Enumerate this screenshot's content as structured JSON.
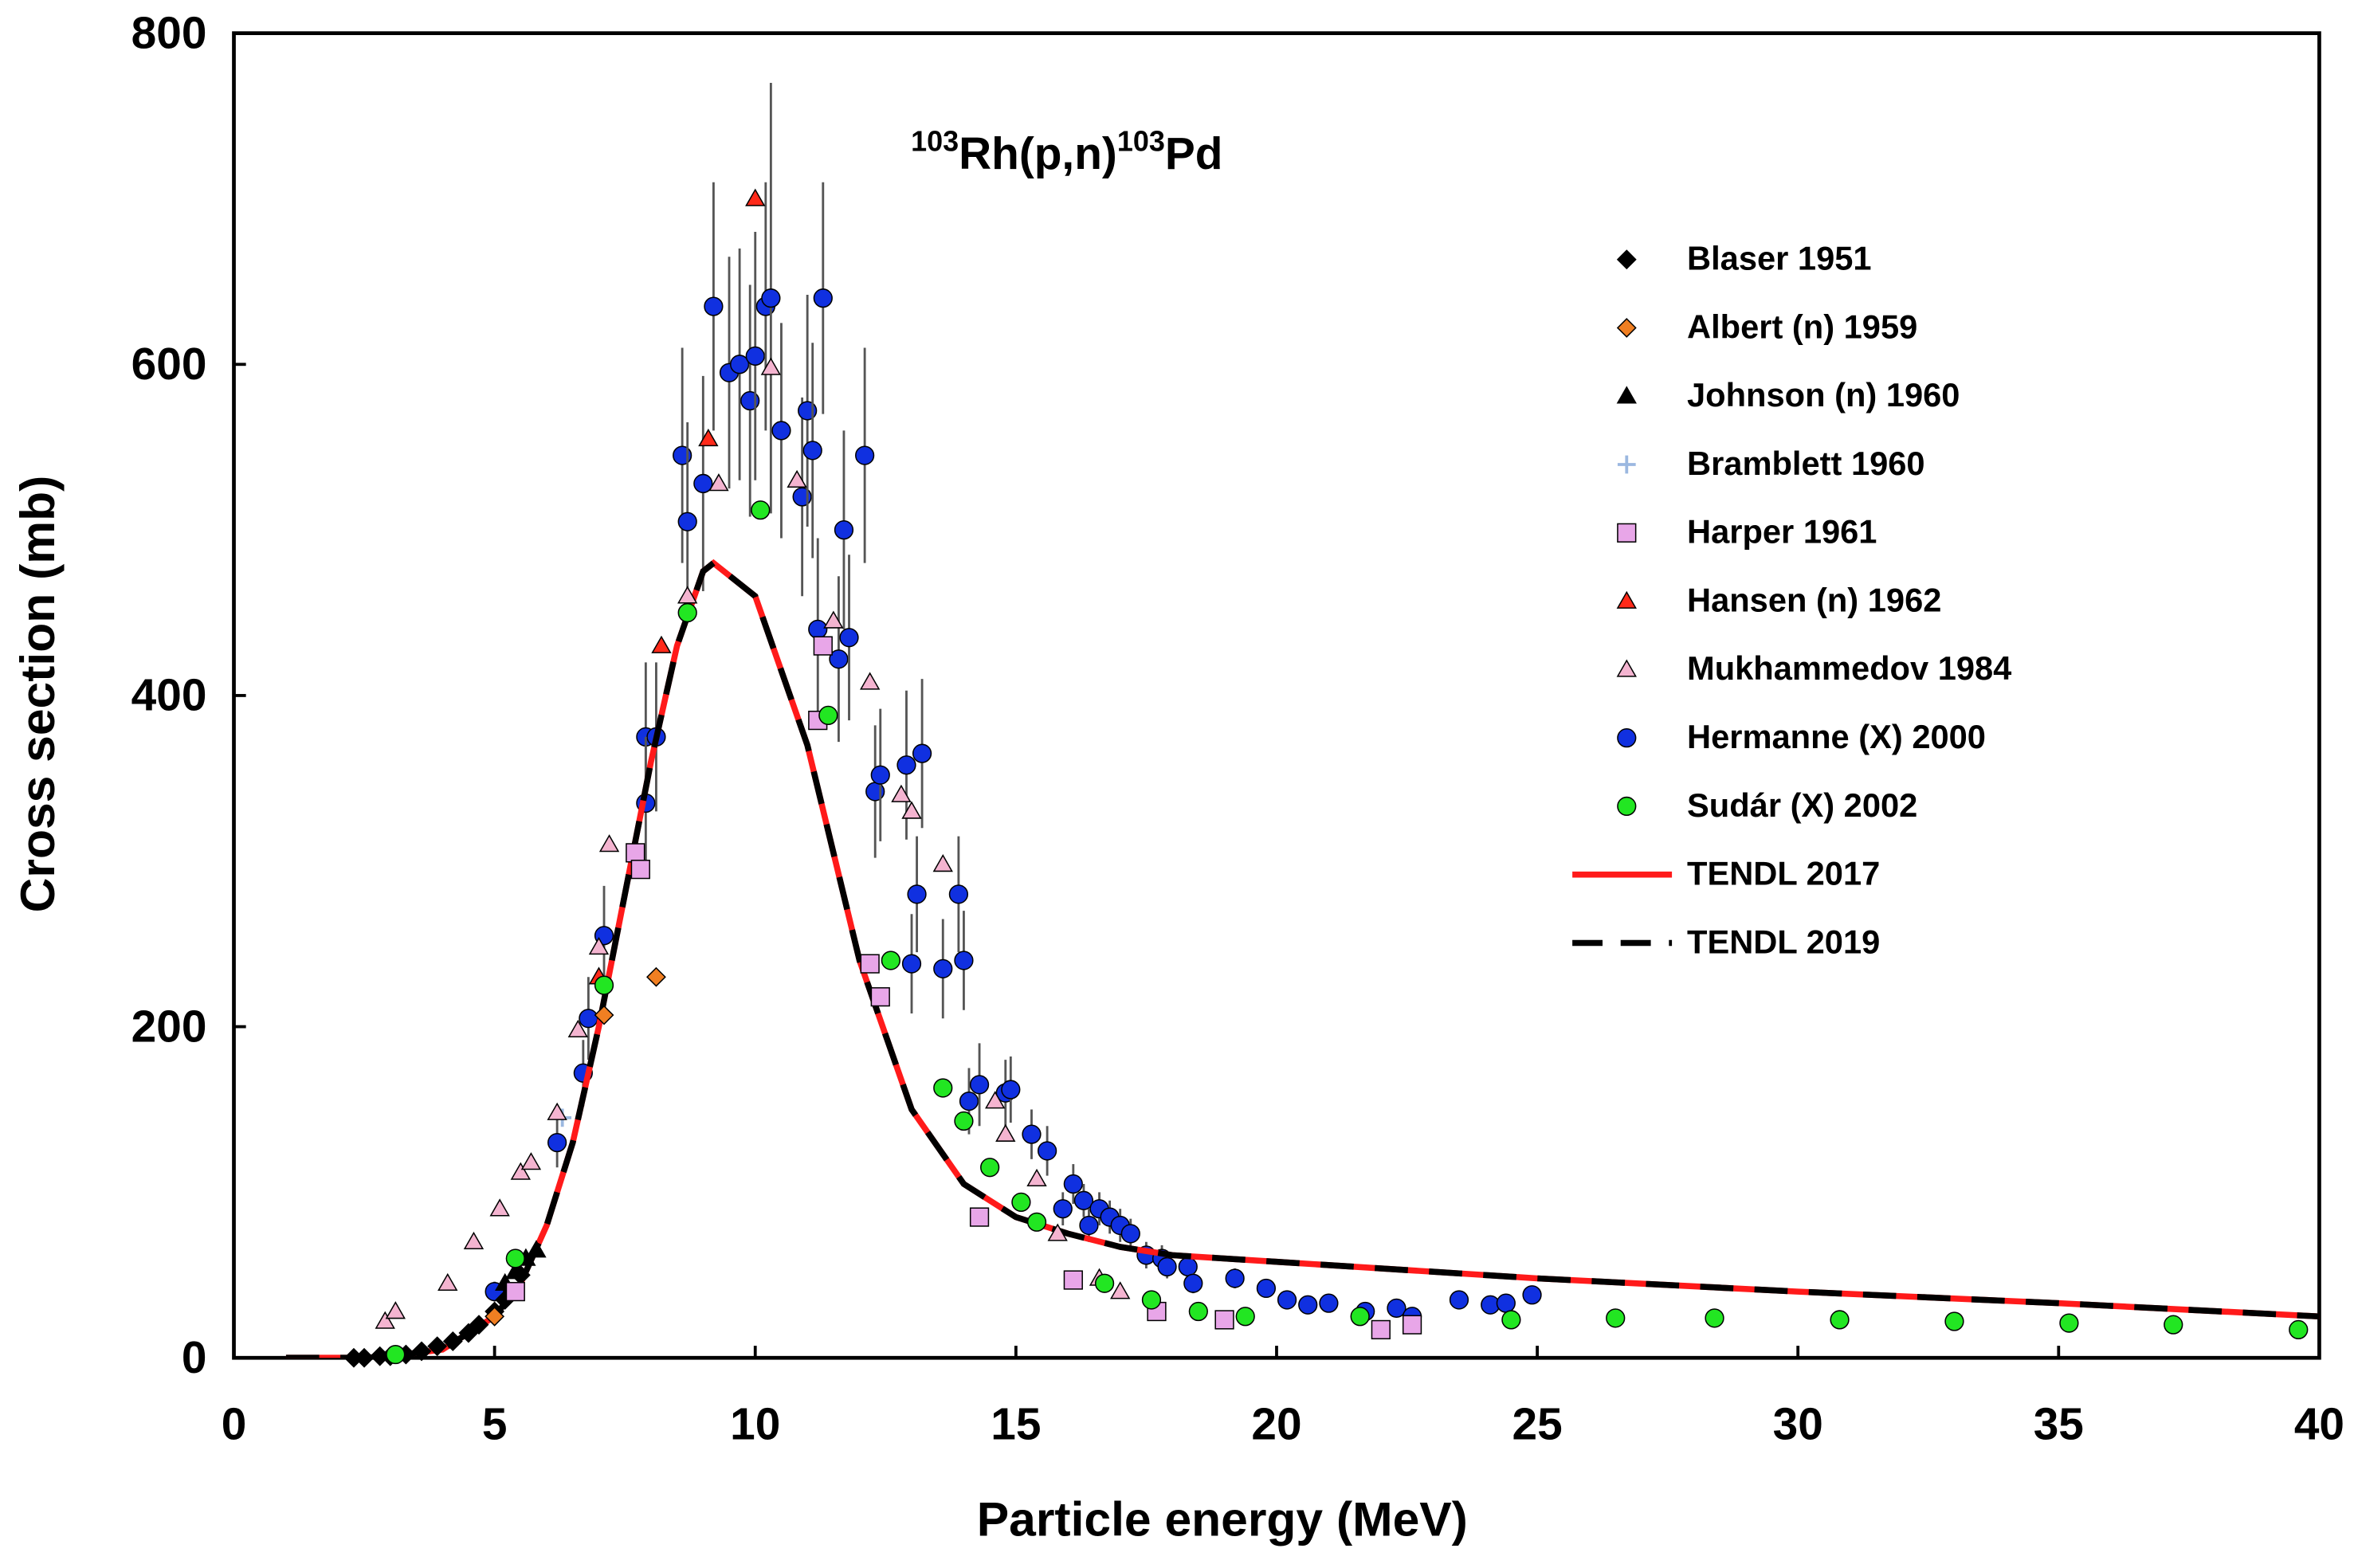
{
  "chart_data": {
    "type": "scatter",
    "title": [
      "103",
      "Rh(p,n)",
      "103",
      "Pd"
    ],
    "xlabel": "Particle energy (MeV)",
    "ylabel": "Cross section (mb)",
    "xlim": [
      0,
      40
    ],
    "ylim": [
      0,
      800
    ],
    "xticks": [
      0,
      5,
      10,
      15,
      20,
      25,
      30,
      35,
      40
    ],
    "yticks": [
      0,
      200,
      400,
      600,
      800
    ],
    "grid": false,
    "legend": "upper right",
    "series": [
      {
        "name": "Blaser 1951",
        "kind": "scatter",
        "marker": "diamond",
        "color": "#000000",
        "x": [
          2.3,
          2.5,
          2.8,
          3.0,
          3.3,
          3.6,
          3.9,
          4.2,
          4.5,
          4.7,
          5.0,
          5.2,
          5.5
        ],
        "values": [
          0,
          0,
          1,
          1,
          2,
          4,
          7,
          10,
          15,
          20,
          28,
          35,
          50
        ]
      },
      {
        "name": "Albert (n) 1959",
        "kind": "scatter",
        "marker": "diamond",
        "color": "#f07f22",
        "x": [
          5.0,
          7.1,
          8.1
        ],
        "values": [
          25,
          207,
          230
        ]
      },
      {
        "name": "Johnson (n) 1960",
        "kind": "scatter",
        "marker": "triangle",
        "color": "#000000",
        "x": [
          5.2,
          5.4,
          5.6,
          5.8
        ],
        "values": [
          45,
          52,
          60,
          65
        ]
      },
      {
        "name": "Bramblett 1960",
        "kind": "scatter",
        "marker": "plus",
        "color": "#9bb8e0",
        "x": [
          6.3
        ],
        "values": [
          145
        ]
      },
      {
        "name": "Harper 1961",
        "kind": "scatter",
        "marker": "square",
        "color": "#e8a6e8",
        "x": [
          5.4,
          7.7,
          7.8,
          11.2,
          11.3,
          12.2,
          12.4,
          14.3,
          16.1,
          17.7,
          19.0,
          22.0,
          22.6
        ],
        "values": [
          40,
          305,
          295,
          385,
          430,
          238,
          218,
          85,
          47,
          28,
          23,
          17,
          20
        ]
      },
      {
        "name": "Hansen (n) 1962",
        "kind": "scatter",
        "marker": "triangle",
        "color": "#ff2a1a",
        "x": [
          7.0,
          8.2,
          9.1,
          10.0
        ],
        "values": [
          230,
          430,
          555,
          700
        ]
      },
      {
        "name": "Mukhammedov 1984",
        "kind": "scatter",
        "marker": "triangle",
        "color": "#f4b4d0",
        "x": [
          2.9,
          3.1,
          4.1,
          4.6,
          5.1,
          5.5,
          5.7,
          6.2,
          6.6,
          7.0,
          7.2,
          8.7,
          9.3,
          10.3,
          10.8,
          11.5,
          12.2,
          12.8,
          13.0,
          13.6,
          14.6,
          14.8,
          15.4,
          15.8,
          16.6,
          17.0
        ],
        "values": [
          22,
          28,
          45,
          70,
          90,
          112,
          118,
          148,
          198,
          248,
          310,
          460,
          528,
          598,
          530,
          445,
          408,
          340,
          330,
          298,
          155,
          135,
          108,
          75,
          48,
          40
        ]
      },
      {
        "name": "Hermanne (X) 2000",
        "kind": "scatter",
        "marker": "circle",
        "color": "#1030e0",
        "x": [
          5.0,
          6.2,
          6.7,
          6.8,
          7.1,
          7.9,
          8.1,
          7.9,
          8.6,
          8.7,
          9.0,
          9.2,
          9.5,
          9.7,
          9.9,
          10.0,
          10.2,
          10.3,
          10.5,
          10.9,
          11.0,
          11.1,
          11.3,
          11.2,
          11.6,
          11.7,
          11.8,
          12.1,
          12.3,
          12.4,
          12.9,
          13.0,
          13.1,
          13.2,
          13.6,
          13.9,
          14.0,
          14.1,
          14.3,
          14.8,
          14.9,
          15.3,
          15.6,
          15.9,
          16.1,
          16.3,
          16.4,
          16.6,
          16.8,
          17.0,
          17.2,
          17.5,
          17.8,
          17.9,
          18.3,
          18.4,
          19.2,
          19.8,
          20.2,
          20.6,
          21.0,
          21.7,
          22.3,
          22.6,
          23.5,
          24.1,
          24.4,
          24.9
        ],
        "values": [
          40,
          130,
          172,
          205,
          255,
          375,
          375,
          335,
          545,
          505,
          528,
          635,
          595,
          600,
          578,
          605,
          635,
          640,
          560,
          520,
          572,
          548,
          640,
          440,
          422,
          500,
          435,
          545,
          342,
          352,
          358,
          238,
          280,
          365,
          235,
          280,
          240,
          155,
          165,
          160,
          162,
          135,
          125,
          90,
          105,
          95,
          80,
          90,
          85,
          80,
          75,
          62,
          60,
          55,
          55,
          45,
          48,
          42,
          35,
          32,
          33,
          28,
          30,
          25,
          35,
          32,
          33,
          38
        ],
        "errors": [
          6,
          15,
          20,
          25,
          30,
          45,
          45,
          40,
          65,
          60,
          65,
          75,
          70,
          70,
          70,
          75,
          75,
          130,
          65,
          60,
          70,
          65,
          70,
          55,
          50,
          60,
          50,
          65,
          40,
          40,
          45,
          30,
          35,
          45,
          30,
          35,
          30,
          20,
          25,
          20,
          20,
          15,
          15,
          10,
          12,
          10,
          10,
          10,
          10,
          10,
          9,
          8,
          8,
          7,
          7,
          6,
          6,
          5,
          4,
          4,
          4,
          4,
          4,
          3,
          4,
          4,
          4,
          5
        ]
      },
      {
        "name": "Sudár (X) 2002",
        "kind": "scatter",
        "marker": "circle",
        "color": "#22e622",
        "x": [
          3.1,
          5.4,
          7.1,
          8.7,
          10.1,
          11.4,
          12.6,
          13.6,
          14.0,
          14.5,
          15.1,
          15.4,
          16.7,
          17.6,
          18.5,
          19.4,
          21.6,
          24.5,
          26.5,
          28.4,
          30.8,
          33.0,
          35.2,
          37.2,
          39.6
        ],
        "values": [
          2,
          60,
          225,
          450,
          512,
          388,
          240,
          163,
          143,
          115,
          94,
          82,
          45,
          35,
          28,
          25,
          25,
          23,
          24,
          24,
          23,
          22,
          21,
          20,
          17
        ]
      },
      {
        "name": "TENDL 2017",
        "kind": "line",
        "style": "solid",
        "color": "#ff1a1a",
        "x": [
          1,
          2,
          2.5,
          3,
          4,
          5,
          5.5,
          6,
          6.5,
          7,
          7.5,
          8,
          8.5,
          9,
          9.2,
          10,
          11,
          12,
          13,
          14,
          15,
          16,
          17,
          18,
          20,
          25,
          30,
          35,
          40
        ],
        "values": [
          0,
          0,
          0,
          1,
          5,
          25,
          45,
          80,
          130,
          200,
          280,
          360,
          430,
          475,
          480,
          460,
          370,
          240,
          150,
          105,
          85,
          75,
          67,
          62,
          58,
          48,
          40,
          33,
          25
        ]
      },
      {
        "name": "TENDL 2019",
        "kind": "line",
        "style": "dashed",
        "color": "#000000",
        "x": [
          1,
          2,
          2.5,
          3,
          4,
          5,
          5.5,
          6,
          6.5,
          7,
          7.5,
          8,
          8.5,
          9,
          9.2,
          10,
          11,
          12,
          13,
          14,
          15,
          16,
          17,
          18,
          20,
          25,
          30,
          35,
          40
        ],
        "values": [
          0,
          0,
          0,
          1,
          5,
          25,
          45,
          80,
          130,
          200,
          280,
          360,
          430,
          475,
          480,
          460,
          370,
          240,
          150,
          105,
          85,
          75,
          67,
          62,
          58,
          48,
          40,
          33,
          25
        ]
      }
    ]
  }
}
